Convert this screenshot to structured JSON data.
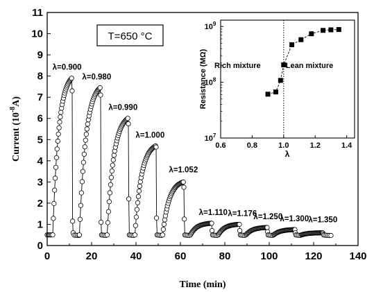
{
  "chart_data": [
    {
      "type": "scatter",
      "marker": "open-circle",
      "xlabel": "Time (min)",
      "ylabel_main": "Current",
      "ylabel_exp": "-8",
      "ylabel_unit": "A",
      "ylabel_prefix": "(10",
      "xlim": [
        0,
        140
      ],
      "ylim": [
        0,
        11
      ],
      "xticks": [
        "0",
        "20",
        "40",
        "60",
        "80",
        "100",
        "120",
        "140"
      ],
      "yticks": [
        "0",
        "1",
        "2",
        "3",
        "4",
        "5",
        "6",
        "7",
        "8",
        "9",
        "10",
        "11"
      ],
      "temperature_label": "T=650 °C",
      "pulses": [
        {
          "label": "λ=0.900",
          "t_on": 2.5,
          "t_off": 11.0,
          "peak": 7.9,
          "after": 7.3,
          "low": 1.15,
          "tail": 0.6
        },
        {
          "label": "λ=0.980",
          "t_on": 14.5,
          "t_off": 23.8,
          "peak": 7.45,
          "after": 7.1,
          "low": 1.1,
          "tail": 0.5
        },
        {
          "label": "λ=0.990",
          "t_on": 27.0,
          "t_off": 36.3,
          "peak": 6.0,
          "after": 5.75,
          "low": 2.2,
          "tail": 0.5
        },
        {
          "label": "λ=1.000",
          "t_on": 39.5,
          "t_off": 48.8,
          "peak": 4.7,
          "after": 4.65,
          "low": 1.3,
          "tail": 0.5
        },
        {
          "label": "λ=1.052",
          "t_on": 52.0,
          "t_off": 61.3,
          "peak": 3.0,
          "after": 2.75,
          "low": 1.25,
          "tail": 0.5
        },
        {
          "label": "λ=1.110",
          "t_on": 64.5,
          "t_off": 73.8,
          "peak": 1.05,
          "after": 1.05,
          "low": 0.7,
          "tail": 0.5
        },
        {
          "label": "λ=1.176",
          "t_on": 77.0,
          "t_off": 86.3,
          "peak": 1.0,
          "after": 1.0,
          "low": 0.7,
          "tail": 0.5
        },
        {
          "label": "λ=1.250",
          "t_on": 89.5,
          "t_off": 98.8,
          "peak": 0.85,
          "after": 0.85,
          "low": 0.65,
          "tail": 0.5
        },
        {
          "label": "λ=1.300",
          "t_on": 102.0,
          "t_off": 111.3,
          "peak": 0.75,
          "after": 0.75,
          "low": 0.6,
          "tail": 0.5
        },
        {
          "label": "λ=1.350",
          "t_on": 114.5,
          "t_off": 123.8,
          "peak": 0.6,
          "after": 0.6,
          "low": 0.55,
          "tail": 0.5
        }
      ],
      "baseline": 0.5,
      "t_end": 128
    },
    {
      "type": "scatter",
      "marker": "filled-square",
      "line": "dashed",
      "xlabel": "λ",
      "ylabel": "Resistance (MΩ)",
      "xlim": [
        0.6,
        1.45
      ],
      "ylim_log": [
        10000000.0,
        1300000000.0
      ],
      "xticks": [
        "0.6",
        "0.8",
        "1.0",
        "1.2",
        "1.4"
      ],
      "yticks": [
        {
          "base": "10",
          "exp": "7",
          "value": 10000000.0
        },
        {
          "base": "10",
          "exp": "8",
          "value": 100000000.0
        },
        {
          "base": "10",
          "exp": "9",
          "value": 1000000000.0
        }
      ],
      "vline_x": 1.0,
      "left_region_label": "Rich mixture",
      "right_region_label": "Lean mixture",
      "points": [
        {
          "x": 0.9,
          "y": 61000000.0
        },
        {
          "x": 0.95,
          "y": 67000000.0
        },
        {
          "x": 0.98,
          "y": 108000000.0
        },
        {
          "x": 1.0,
          "y": 205000000.0
        },
        {
          "x": 1.052,
          "y": 470000000.0
        },
        {
          "x": 1.11,
          "y": 580000000.0
        },
        {
          "x": 1.176,
          "y": 740000000.0
        },
        {
          "x": 1.25,
          "y": 850000000.0
        },
        {
          "x": 1.3,
          "y": 870000000.0
        },
        {
          "x": 1.35,
          "y": 880000000.0
        }
      ]
    }
  ]
}
